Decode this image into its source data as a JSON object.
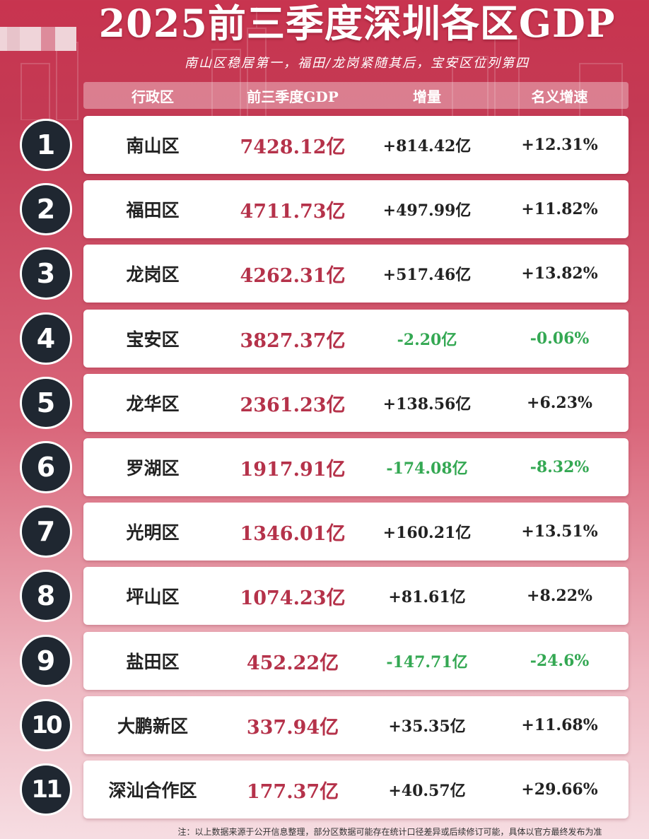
{
  "title": "2025前三季度深圳各区GDP",
  "subtitle": "南山区稳居第一，福田/龙岗紧随其后，宝安区位列第四",
  "header": {
    "district": "行政区",
    "gdp": "前三季度GDP",
    "increment": "增量",
    "growth": "名义增速"
  },
  "footnote": "注：以上数据来源于公开信息整理，部分区数据可能存在统计口径差异或后续修订可能，具体以官方最终发布为准",
  "colors": {
    "positive": "#222222",
    "negative": "#34a853",
    "gdp": "#b5324a",
    "accent": "#c8344f"
  },
  "chart_data": {
    "type": "table",
    "title": "2025前三季度深圳各区GDP",
    "columns": [
      "行政区",
      "前三季度GDP",
      "增量",
      "名义增速"
    ],
    "rows": [
      {
        "rank": "1",
        "district": "南山区",
        "gdp": "7428.12亿",
        "increment": "+814.42亿",
        "growth": "+12.31%",
        "negative": false
      },
      {
        "rank": "2",
        "district": "福田区",
        "gdp": "4711.73亿",
        "increment": "+497.99亿",
        "growth": "+11.82%",
        "negative": false
      },
      {
        "rank": "3",
        "district": "龙岗区",
        "gdp": "4262.31亿",
        "increment": "+517.46亿",
        "growth": "+13.82%",
        "negative": false
      },
      {
        "rank": "4",
        "district": "宝安区",
        "gdp": "3827.37亿",
        "increment": "-2.20亿",
        "growth": "-0.06%",
        "negative": true
      },
      {
        "rank": "5",
        "district": "龙华区",
        "gdp": "2361.23亿",
        "increment": "+138.56亿",
        "growth": "+6.23%",
        "negative": false
      },
      {
        "rank": "6",
        "district": "罗湖区",
        "gdp": "1917.91亿",
        "increment": "-174.08亿",
        "growth": "-8.32%",
        "negative": true
      },
      {
        "rank": "7",
        "district": "光明区",
        "gdp": "1346.01亿",
        "increment": "+160.21亿",
        "growth": "+13.51%",
        "negative": false
      },
      {
        "rank": "8",
        "district": "坪山区",
        "gdp": "1074.23亿",
        "increment": "+81.61亿",
        "growth": "+8.22%",
        "negative": false
      },
      {
        "rank": "9",
        "district": "盐田区",
        "gdp": "452.22亿",
        "increment": "-147.71亿",
        "growth": "-24.6%",
        "negative": true
      },
      {
        "rank": "10",
        "district": "大鹏新区",
        "gdp": "337.94亿",
        "increment": "+35.35亿",
        "growth": "+11.68%",
        "negative": false
      },
      {
        "rank": "11",
        "district": "深汕合作区",
        "gdp": "177.37亿",
        "increment": "+40.57亿",
        "growth": "+29.66%",
        "negative": false
      }
    ]
  }
}
